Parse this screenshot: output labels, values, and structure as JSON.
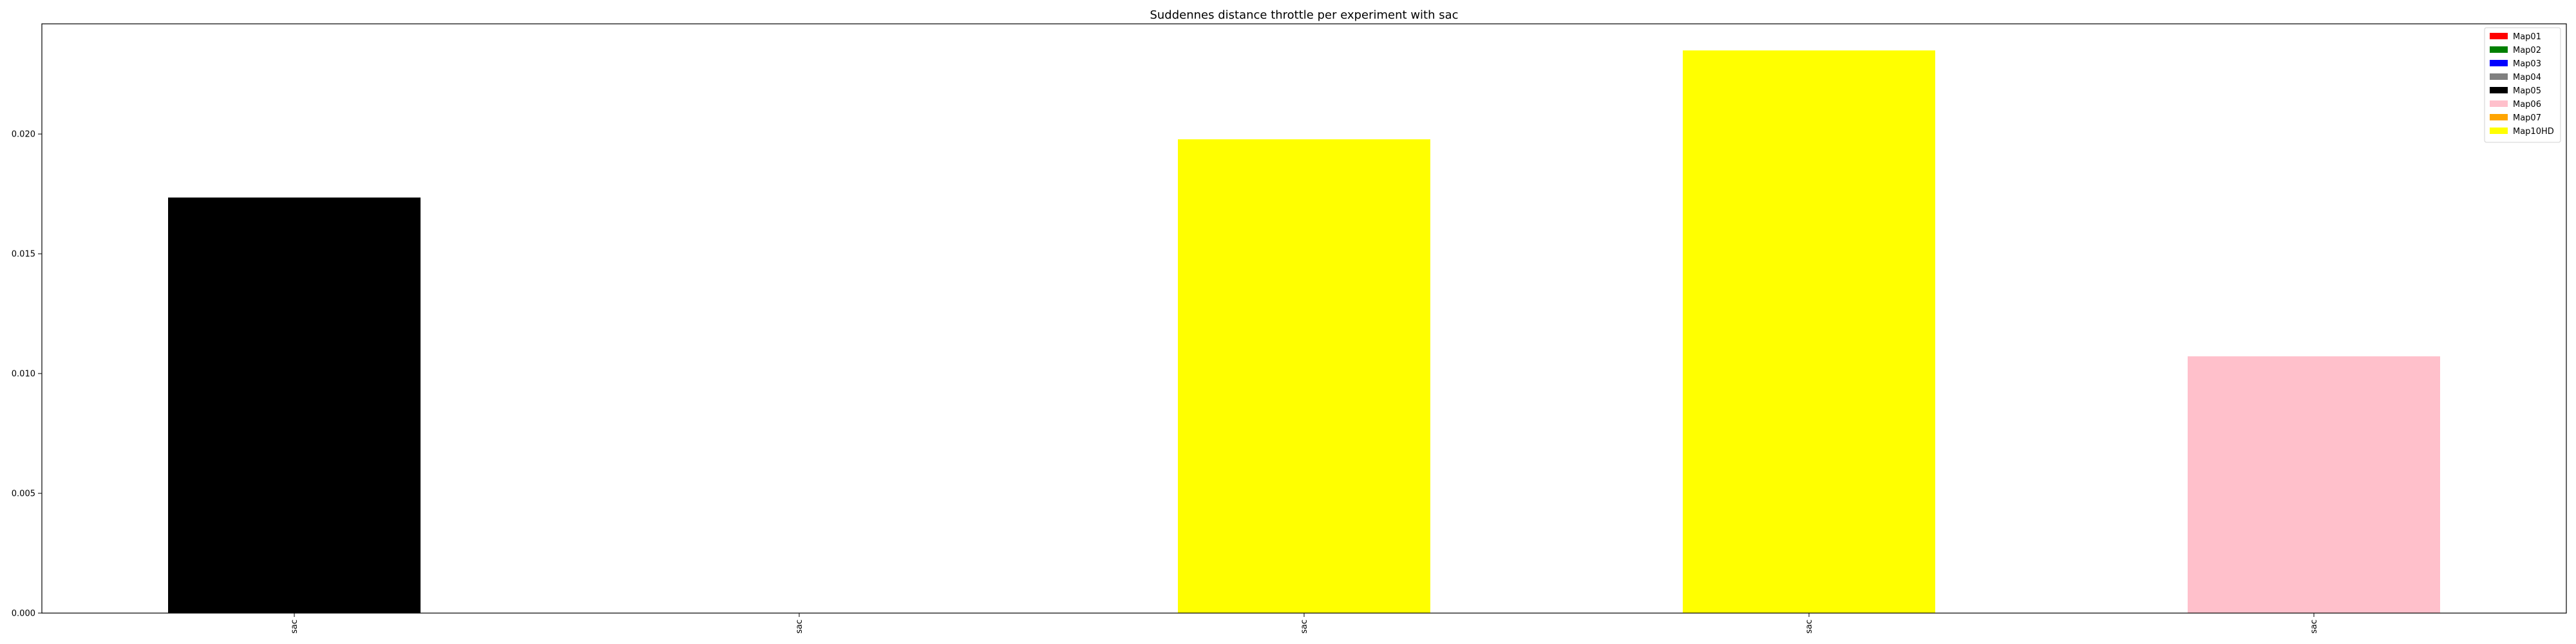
{
  "chart_data": {
    "type": "bar",
    "title": "Suddennes distance throttle per experiment with sac",
    "xlabel": "",
    "ylabel": "",
    "categories": [
      "sac",
      "sac",
      "sac",
      "sac",
      "sac"
    ],
    "values": [
      0.01735,
      0.0,
      0.01978,
      0.02349,
      0.01072
    ],
    "bar_colors": [
      "#000000",
      "#ffffff",
      "#ffff00",
      "#ffff00",
      "#ffc0cb"
    ],
    "ylim": [
      0,
      0.0246
    ],
    "yticks": [
      0.0,
      0.005,
      0.01,
      0.015,
      0.02
    ],
    "ytick_labels": [
      "0.000",
      "0.005",
      "0.010",
      "0.015",
      "0.020"
    ],
    "grid": false,
    "legend_placement": "top-right",
    "legend": [
      {
        "label": "Map01",
        "color": "#ff0000"
      },
      {
        "label": "Map02",
        "color": "#008000"
      },
      {
        "label": "Map03",
        "color": "#0000ff"
      },
      {
        "label": "Map04",
        "color": "#808080"
      },
      {
        "label": "Map05",
        "color": "#000000"
      },
      {
        "label": "Map06",
        "color": "#ffc0cb"
      },
      {
        "label": "Map07",
        "color": "#ffa500"
      },
      {
        "label": "Map10HD",
        "color": "#ffff00"
      }
    ]
  }
}
